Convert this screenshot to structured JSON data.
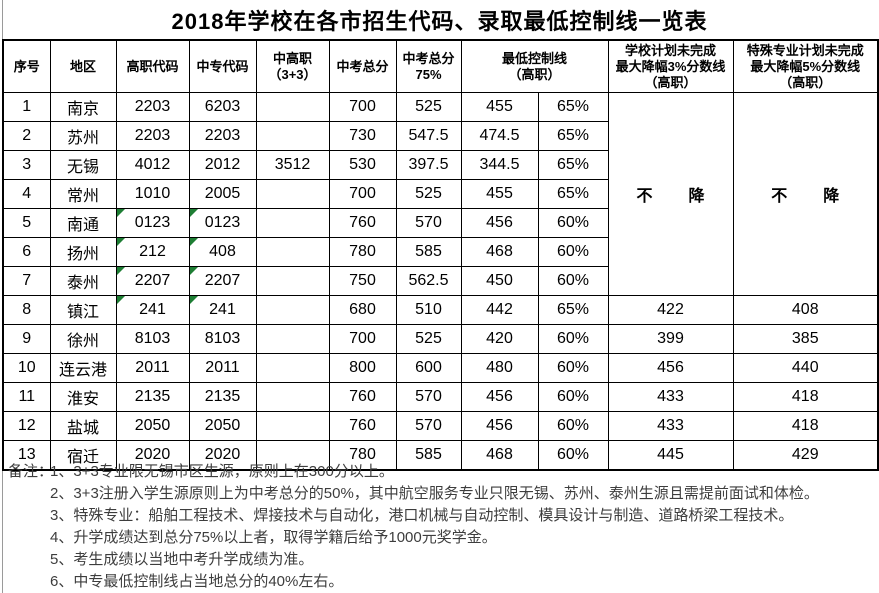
{
  "title": "2018年学校在各市招生代码、录取最低控制线一览表",
  "colors": {
    "border": "#000000",
    "text": "#000000",
    "note_text": "#3d3d3d",
    "flag_triangle_green": "#1e7e34"
  },
  "table": {
    "header_cells": [
      {
        "lines": [
          "序号"
        ],
        "colspan": 1
      },
      {
        "lines": [
          "地区"
        ],
        "colspan": 1
      },
      {
        "lines": [
          "高职代码"
        ],
        "colspan": 1
      },
      {
        "lines": [
          "中专代码"
        ],
        "colspan": 1
      },
      {
        "lines": [
          "中高职",
          "（3+3）"
        ],
        "colspan": 1
      },
      {
        "lines": [
          "中考总分"
        ],
        "colspan": 1
      },
      {
        "lines": [
          "中考总分",
          "75%"
        ],
        "colspan": 1
      },
      {
        "lines": [
          "最低控制线",
          "（高职）"
        ],
        "colspan": 2
      },
      {
        "lines": [
          "学校计划未完成",
          "最大降幅3%分数线",
          "（高职）"
        ],
        "colspan": 1
      },
      {
        "lines": [
          "特殊专业计划未完成",
          "最大降幅5%分数线",
          "（高职）"
        ],
        "colspan": 1
      }
    ],
    "no_drop_label": "不　降",
    "no_drop_rowspan": 7,
    "rows": [
      {
        "no": "1",
        "region": "南京",
        "gz": "2203",
        "zz": "6203",
        "zgz": "",
        "total": "700",
        "p75": "525",
        "min": "455",
        "pct": "65%",
        "code_flag": false,
        "school": "",
        "special": ""
      },
      {
        "no": "2",
        "region": "苏州",
        "gz": "2203",
        "zz": "2203",
        "zgz": "",
        "total": "730",
        "p75": "547.5",
        "min": "474.5",
        "pct": "65%",
        "code_flag": false,
        "school": "",
        "special": ""
      },
      {
        "no": "3",
        "region": "无锡",
        "gz": "4012",
        "zz": "2012",
        "zgz": "3512",
        "total": "530",
        "p75": "397.5",
        "min": "344.5",
        "pct": "65%",
        "code_flag": false,
        "school": "",
        "special": ""
      },
      {
        "no": "4",
        "region": "常州",
        "gz": "1010",
        "zz": "2005",
        "zgz": "",
        "total": "700",
        "p75": "525",
        "min": "455",
        "pct": "65%",
        "code_flag": false,
        "school": "",
        "special": ""
      },
      {
        "no": "5",
        "region": "南通",
        "gz": "0123",
        "zz": "0123",
        "zgz": "",
        "total": "760",
        "p75": "570",
        "min": "456",
        "pct": "60%",
        "code_flag": true,
        "school": "",
        "special": ""
      },
      {
        "no": "6",
        "region": "扬州",
        "gz": "212",
        "zz": "408",
        "zgz": "",
        "total": "780",
        "p75": "585",
        "min": "468",
        "pct": "60%",
        "code_flag": true,
        "school": "",
        "special": ""
      },
      {
        "no": "7",
        "region": "泰州",
        "gz": "2207",
        "zz": "2207",
        "zgz": "",
        "total": "750",
        "p75": "562.5",
        "min": "450",
        "pct": "60%",
        "code_flag": true,
        "school": "",
        "special": ""
      },
      {
        "no": "8",
        "region": "镇江",
        "gz": "241",
        "zz": "241",
        "zgz": "",
        "total": "680",
        "p75": "510",
        "min": "442",
        "pct": "65%",
        "code_flag": true,
        "school": "422",
        "special": "408"
      },
      {
        "no": "9",
        "region": "徐州",
        "gz": "8103",
        "zz": "8103",
        "zgz": "",
        "total": "700",
        "p75": "525",
        "min": "420",
        "pct": "60%",
        "code_flag": false,
        "school": "399",
        "special": "385"
      },
      {
        "no": "10",
        "region": "连云港",
        "gz": "2011",
        "zz": "2011",
        "zgz": "",
        "total": "800",
        "p75": "600",
        "min": "480",
        "pct": "60%",
        "code_flag": false,
        "school": "456",
        "special": "440"
      },
      {
        "no": "11",
        "region": "淮安",
        "gz": "2135",
        "zz": "2135",
        "zgz": "",
        "total": "760",
        "p75": "570",
        "min": "456",
        "pct": "60%",
        "code_flag": false,
        "school": "433",
        "special": "418"
      },
      {
        "no": "12",
        "region": "盐城",
        "gz": "2050",
        "zz": "2050",
        "zgz": "",
        "total": "760",
        "p75": "570",
        "min": "456",
        "pct": "60%",
        "code_flag": false,
        "school": "433",
        "special": "418"
      },
      {
        "no": "13",
        "region": "宿迁",
        "gz": "2020",
        "zz": "2020",
        "zgz": "",
        "total": "780",
        "p75": "585",
        "min": "468",
        "pct": "60%",
        "code_flag": false,
        "school": "445",
        "special": "429"
      }
    ]
  },
  "notes_label": "备注：",
  "notes": [
    "1、3+3专业限无锡市区生源，原则上在300分以上。",
    "2、3+3注册入学生源原则上为中考总分的50%，其中航空服务专业只限无锡、苏州、泰州生源且需提前面试和体检。",
    "3、特殊专业：船舶工程技术、焊接技术与自动化，港口机械与自动控制、模具设计与制造、道路桥梁工程技术。",
    "4、升学成绩达到总分75%以上者，取得学籍后给予1000元奖学金。",
    "5、考生成绩以当地中考升学成绩为准。",
    "6、中专最低控制线占当地总分的40%左右。"
  ]
}
